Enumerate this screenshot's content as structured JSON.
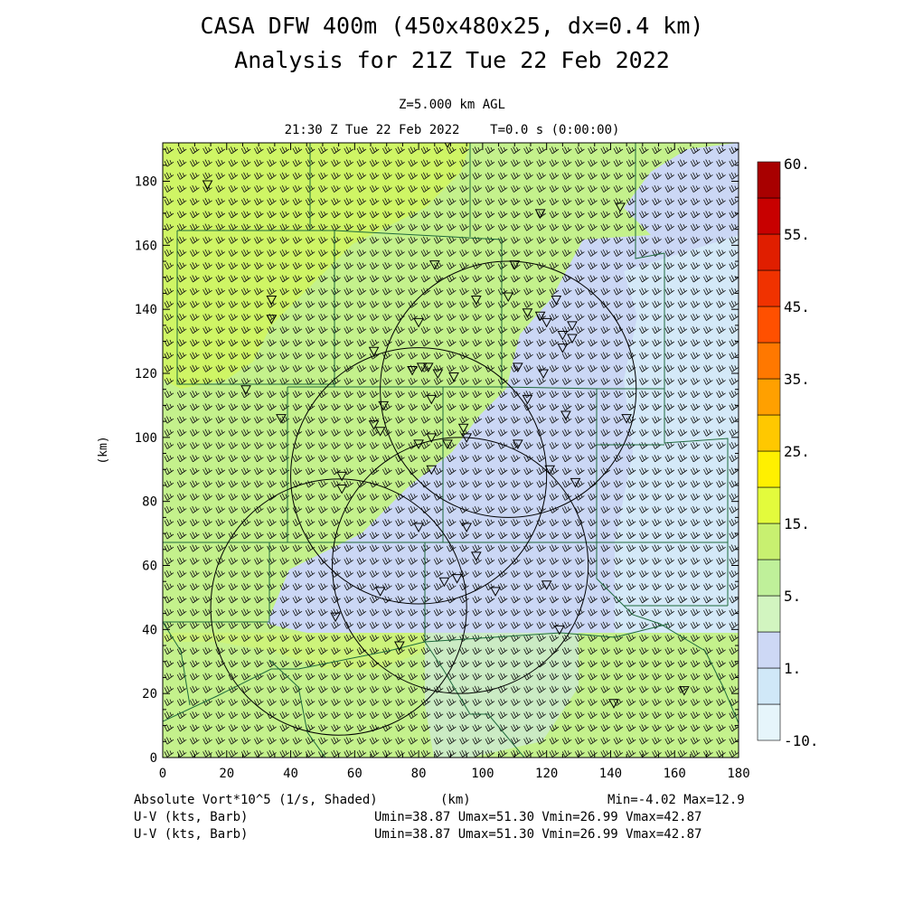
{
  "header": {
    "title_line1": "CASA DFW 400m (450x480x25, dx=0.4 km)",
    "title_line2": "Analysis for 21Z Tue 22 Feb 2022",
    "level": "Z=5.000 km AGL",
    "time": "21:30 Z Tue 22 Feb 2022    T=0.0 s (0:00:00)"
  },
  "footer": {
    "field_name": "Absolute Vort*10^5 (1/s, Shaded)",
    "xunit": "(km)",
    "minmax": "Min=-4.02 Max=12.9",
    "wind_line1_label": "U-V (kts, Barb)",
    "wind_line1_stats": "Umin=38.87 Umax=51.30 Vmin=26.99 Vmax=42.87",
    "wind_line2_label": "U-V (kts, Barb)",
    "wind_line2_stats": "Umin=38.87 Umax=51.30 Vmin=26.99 Vmax=42.87"
  },
  "chart_data": {
    "type": "heatmap",
    "ylabel": "(km)",
    "xlim": [
      0,
      180
    ],
    "ylim": [
      0,
      192
    ],
    "x_ticks": [
      0,
      20,
      40,
      60,
      80,
      100,
      120,
      140,
      160,
      180
    ],
    "y_ticks": [
      0,
      20,
      40,
      60,
      80,
      100,
      120,
      140,
      160,
      180
    ],
    "colorbar": {
      "labels": [
        "-10.",
        "1.",
        "5.",
        "15.",
        "25.",
        "35.",
        "45.",
        "55.",
        "60."
      ],
      "colors": [
        "#e6f5fb",
        "#d0e8f8",
        "#cdd8f5",
        "#d2f5c0",
        "#bff09a",
        "#c8f070",
        "#e3fb3c",
        "#fff000",
        "#ffc800",
        "#ffa000",
        "#ff7800",
        "#ff5000",
        "#f03200",
        "#e01e00",
        "#c80000",
        "#a80000"
      ]
    },
    "field_regions": [
      {
        "name": "green-background",
        "color": "#c4f18c"
      },
      {
        "name": "yellow-green-northwest",
        "color": "#cff565"
      },
      {
        "name": "blue-central-band",
        "color": "#cbd7f5"
      },
      {
        "name": "light-blue-east",
        "color": "#d4e9f8"
      }
    ],
    "radar_rings_km": [
      {
        "cx": 108,
        "cy": 115,
        "r": 40
      },
      {
        "cx": 80,
        "cy": 88,
        "r": 40
      },
      {
        "cx": 93,
        "cy": 60,
        "r": 40
      },
      {
        "cx": 55,
        "cy": 47,
        "r": 40
      }
    ],
    "wind_barbs": {
      "u_range_kts": [
        38.87,
        51.3
      ],
      "v_range_kts": [
        26.99,
        42.87
      ],
      "direction": "southwesterly"
    },
    "station_markers": [
      [
        14,
        179
      ],
      [
        89,
        192
      ],
      [
        118,
        170
      ],
      [
        143,
        172
      ],
      [
        85,
        154
      ],
      [
        110,
        154
      ],
      [
        98,
        143
      ],
      [
        108,
        144
      ],
      [
        123,
        143
      ],
      [
        34,
        143
      ],
      [
        34,
        137
      ],
      [
        80,
        136
      ],
      [
        114,
        139
      ],
      [
        118,
        138
      ],
      [
        120,
        136
      ],
      [
        128,
        135
      ],
      [
        125,
        132
      ],
      [
        128,
        131
      ],
      [
        125,
        128
      ],
      [
        66,
        127
      ],
      [
        81,
        122
      ],
      [
        83,
        122
      ],
      [
        78,
        121
      ],
      [
        86,
        120
      ],
      [
        91,
        119
      ],
      [
        111,
        122
      ],
      [
        119,
        120
      ],
      [
        26,
        115
      ],
      [
        69,
        110
      ],
      [
        84,
        112
      ],
      [
        114,
        112
      ],
      [
        126,
        107
      ],
      [
        145,
        106
      ],
      [
        37,
        106
      ],
      [
        66,
        104
      ],
      [
        68,
        102
      ],
      [
        80,
        98
      ],
      [
        84,
        100
      ],
      [
        89,
        98
      ],
      [
        94,
        103
      ],
      [
        95,
        100
      ],
      [
        111,
        98
      ],
      [
        121,
        90
      ],
      [
        56,
        88
      ],
      [
        84,
        90
      ],
      [
        129,
        86
      ],
      [
        56,
        84
      ],
      [
        80,
        72
      ],
      [
        95,
        72
      ],
      [
        98,
        63
      ],
      [
        92,
        56
      ],
      [
        88,
        55
      ],
      [
        68,
        52
      ],
      [
        104,
        52
      ],
      [
        120,
        54
      ],
      [
        54,
        44
      ],
      [
        74,
        35
      ],
      [
        124,
        40
      ],
      [
        141,
        17
      ],
      [
        163,
        21
      ]
    ]
  }
}
